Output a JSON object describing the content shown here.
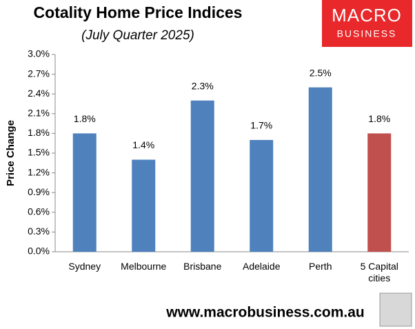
{
  "chart_data": {
    "type": "bar",
    "title": "Cotality Home Price Indices",
    "subtitle": "(July Quarter 2025)",
    "y_label": "Price Change",
    "categories": [
      "Sydney",
      "Melbourne",
      "Brisbane",
      "Adelaide",
      "Perth",
      "5 Capital cities"
    ],
    "values": [
      1.8,
      1.4,
      2.3,
      1.7,
      2.5,
      1.8
    ],
    "value_labels": [
      "1.8%",
      "1.4%",
      "2.3%",
      "1.7%",
      "2.5%",
      "1.8%"
    ],
    "colors": [
      "#4f81bd",
      "#4f81bd",
      "#4f81bd",
      "#4f81bd",
      "#4f81bd",
      "#c0504d"
    ],
    "ylim": [
      0,
      3
    ],
    "yticks": [
      {
        "value": 0,
        "label": "0.0%"
      },
      {
        "value": 0.3,
        "label": "0.3%"
      },
      {
        "value": 0.6,
        "label": "0.6%"
      },
      {
        "value": 0.9,
        "label": "0.9%"
      },
      {
        "value": 1.2,
        "label": "1.2%"
      },
      {
        "value": 1.5,
        "label": "1.5%"
      },
      {
        "value": 1.8,
        "label": "1.8%"
      },
      {
        "value": 2.1,
        "label": "2.1%"
      },
      {
        "value": 2.4,
        "label": "2.4%"
      },
      {
        "value": 2.7,
        "label": "2.7%"
      },
      {
        "value": 3.0,
        "label": "3.0%"
      }
    ],
    "grid": false
  },
  "logo": {
    "line1": "MACRO",
    "line2": "BUSINESS"
  },
  "footer": "www.macrobusiness.com.au"
}
